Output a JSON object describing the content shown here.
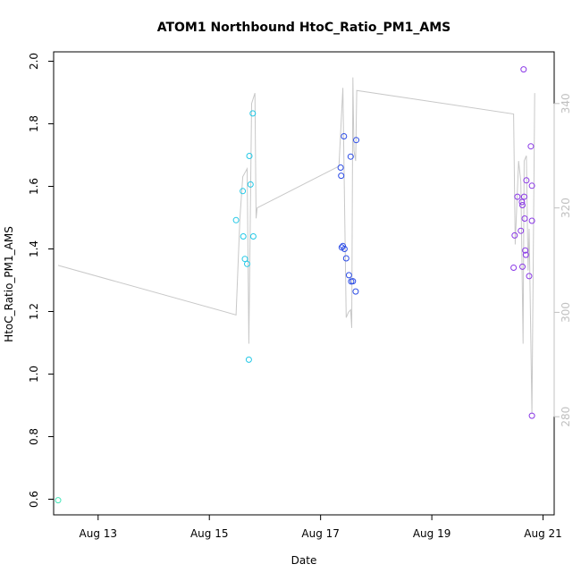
{
  "chart_data": {
    "type": "scatter",
    "title": "ATOM1 Northbound HtoC_Ratio_PM1_AMS",
    "xlabel": "Date",
    "ylabel": "HtoC_Ratio_PM1_AMS",
    "xlim": [
      12.2,
      21.2
    ],
    "ylim": [
      0.55,
      2.03
    ],
    "x_ticks": [
      {
        "value": 13,
        "label": "Aug 13"
      },
      {
        "value": 15,
        "label": "Aug 15"
      },
      {
        "value": 17,
        "label": "Aug 17"
      },
      {
        "value": 19,
        "label": "Aug 19"
      },
      {
        "value": 21,
        "label": "Aug 21"
      }
    ],
    "y_ticks": [
      0.6,
      0.8,
      1.0,
      1.2,
      1.4,
      1.6,
      1.8,
      2.0
    ],
    "y2lim": [
      261.2,
      349.9
    ],
    "y2_ticks": [
      280,
      300,
      320,
      340
    ],
    "colors": {
      "axis": "#000000",
      "secondary_axis": "#c0c0c0",
      "track_line": "#c8c8c8",
      "cyan": "#22c8e6",
      "blue": "#2d4de6",
      "purple": "#8a38e6",
      "mint": "#44e6b8"
    },
    "series": [
      {
        "name": "HtoC_Ratio_PM1_AMS",
        "points": [
          {
            "x": 12.28,
            "y": 0.597,
            "color": "mint"
          },
          {
            "x": 15.48,
            "y": 1.492,
            "color": "cyan"
          },
          {
            "x": 15.6,
            "y": 1.585,
            "color": "cyan"
          },
          {
            "x": 15.61,
            "y": 1.44,
            "color": "cyan"
          },
          {
            "x": 15.64,
            "y": 1.368,
            "color": "cyan"
          },
          {
            "x": 15.68,
            "y": 1.352,
            "color": "cyan"
          },
          {
            "x": 15.71,
            "y": 1.046,
            "color": "cyan"
          },
          {
            "x": 15.72,
            "y": 1.697,
            "color": "cyan"
          },
          {
            "x": 15.74,
            "y": 1.606,
            "color": "cyan"
          },
          {
            "x": 15.78,
            "y": 1.833,
            "color": "cyan"
          },
          {
            "x": 15.79,
            "y": 1.44,
            "color": "cyan"
          },
          {
            "x": 17.36,
            "y": 1.66,
            "color": "blue"
          },
          {
            "x": 17.37,
            "y": 1.634,
            "color": "blue"
          },
          {
            "x": 17.38,
            "y": 1.405,
            "color": "blue"
          },
          {
            "x": 17.4,
            "y": 1.409,
            "color": "blue"
          },
          {
            "x": 17.42,
            "y": 1.76,
            "color": "blue"
          },
          {
            "x": 17.43,
            "y": 1.4,
            "color": "blue"
          },
          {
            "x": 17.46,
            "y": 1.37,
            "color": "blue"
          },
          {
            "x": 17.51,
            "y": 1.316,
            "color": "blue"
          },
          {
            "x": 17.54,
            "y": 1.695,
            "color": "blue"
          },
          {
            "x": 17.55,
            "y": 1.296,
            "color": "blue"
          },
          {
            "x": 17.58,
            "y": 1.297,
            "color": "blue"
          },
          {
            "x": 17.63,
            "y": 1.264,
            "color": "blue"
          },
          {
            "x": 17.64,
            "y": 1.748,
            "color": "blue"
          },
          {
            "x": 20.47,
            "y": 1.34,
            "color": "purple"
          },
          {
            "x": 20.49,
            "y": 1.443,
            "color": "purple"
          },
          {
            "x": 20.54,
            "y": 1.567,
            "color": "purple"
          },
          {
            "x": 20.6,
            "y": 1.458,
            "color": "purple"
          },
          {
            "x": 20.62,
            "y": 1.55,
            "color": "purple"
          },
          {
            "x": 20.63,
            "y": 1.54,
            "color": "purple"
          },
          {
            "x": 20.63,
            "y": 1.343,
            "color": "purple"
          },
          {
            "x": 20.65,
            "y": 1.974,
            "color": "purple"
          },
          {
            "x": 20.66,
            "y": 1.567,
            "color": "purple"
          },
          {
            "x": 20.67,
            "y": 1.497,
            "color": "purple"
          },
          {
            "x": 20.68,
            "y": 1.395,
            "color": "purple"
          },
          {
            "x": 20.69,
            "y": 1.381,
            "color": "purple"
          },
          {
            "x": 20.7,
            "y": 1.619,
            "color": "purple"
          },
          {
            "x": 20.75,
            "y": 1.313,
            "color": "purple"
          },
          {
            "x": 20.78,
            "y": 1.728,
            "color": "purple"
          },
          {
            "x": 20.8,
            "y": 1.602,
            "color": "purple"
          },
          {
            "x": 20.8,
            "y": 1.49,
            "color": "purple"
          },
          {
            "x": 20.8,
            "y": 0.867,
            "color": "purple"
          }
        ]
      }
    ],
    "secondary_line": {
      "name": "secondary axis trace",
      "points": [
        [
          12.28,
          309
        ],
        [
          15.48,
          299.5
        ],
        [
          15.55,
          318
        ],
        [
          15.6,
          326
        ],
        [
          15.68,
          327.5
        ],
        [
          15.71,
          294
        ],
        [
          15.76,
          340
        ],
        [
          15.82,
          342
        ],
        [
          15.84,
          318
        ],
        [
          15.86,
          320
        ],
        [
          17.33,
          328
        ],
        [
          17.4,
          343
        ],
        [
          17.46,
          299
        ],
        [
          17.5,
          300
        ],
        [
          17.54,
          300.5
        ],
        [
          17.56,
          297
        ],
        [
          17.58,
          345
        ],
        [
          17.6,
          331
        ],
        [
          17.63,
          329
        ],
        [
          17.65,
          342.5
        ],
        [
          20.47,
          338
        ],
        [
          20.5,
          313
        ],
        [
          20.56,
          329
        ],
        [
          20.6,
          325
        ],
        [
          20.64,
          294
        ],
        [
          20.66,
          329
        ],
        [
          20.7,
          330
        ],
        [
          20.73,
          308
        ],
        [
          20.75,
          316
        ],
        [
          20.8,
          280.5
        ],
        [
          20.85,
          342
        ]
      ]
    }
  }
}
